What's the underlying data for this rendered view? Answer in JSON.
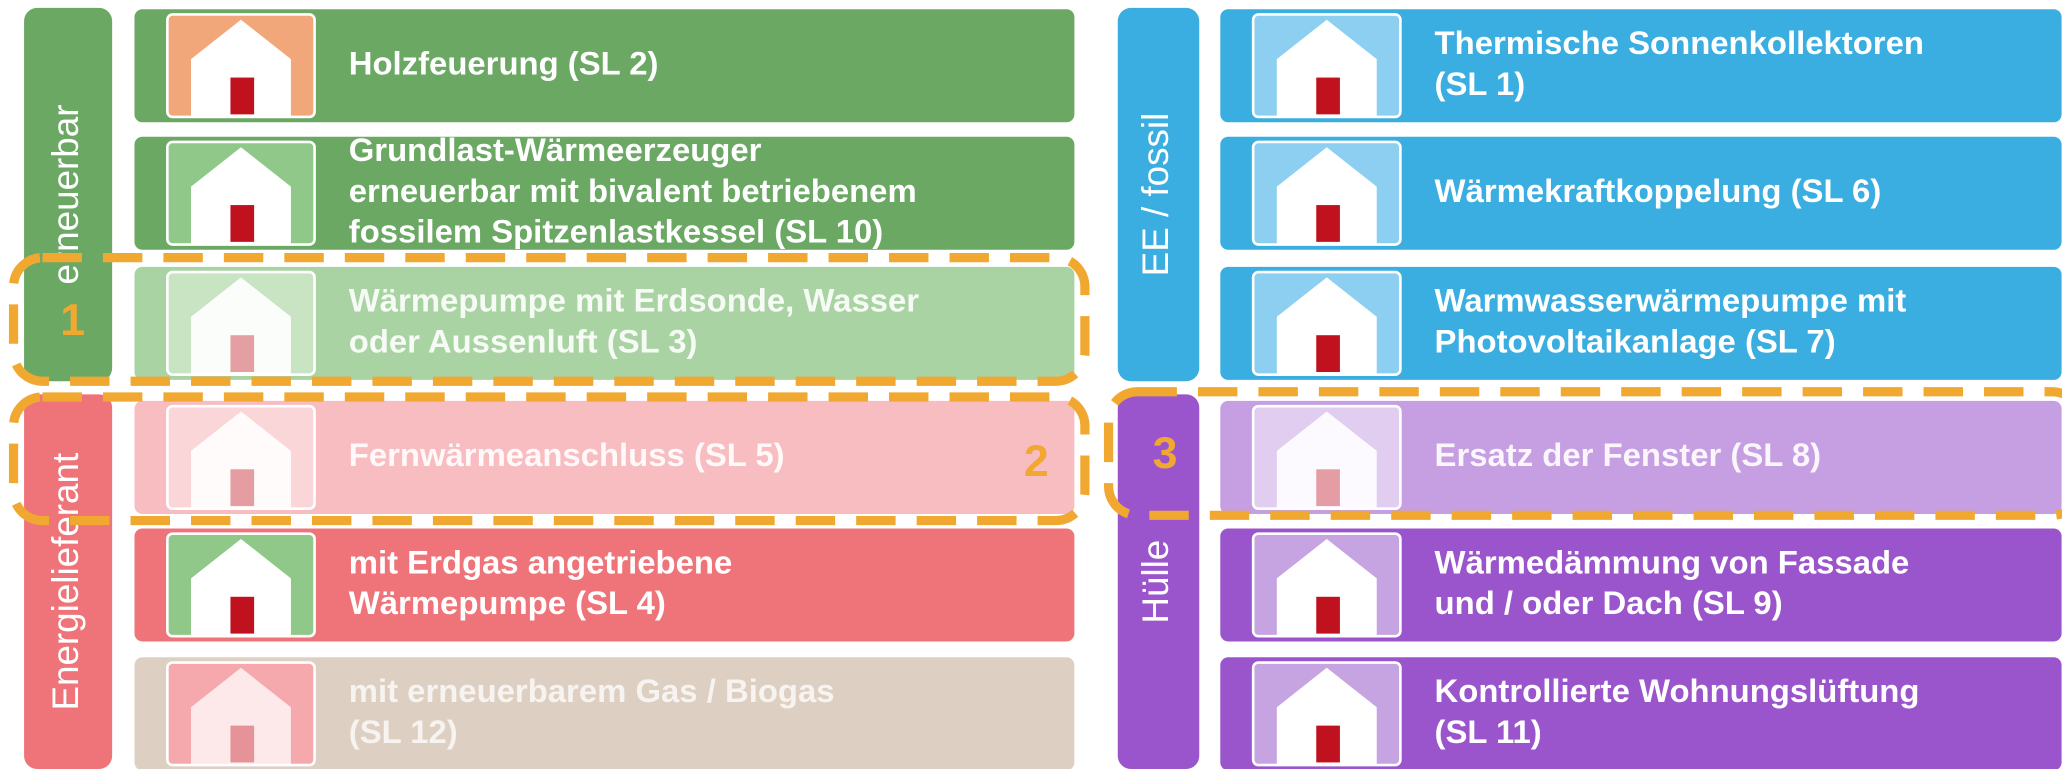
{
  "left": {
    "groups": [
      "erneuerbar",
      "Energielieferant"
    ],
    "rows": [
      [
        "Holzfeuerung (SL 2)"
      ],
      [
        "Grundlast-Wärmeerzeuger",
        "erneuerbar mit bivalent betriebenem",
        "fossilem Spitzenlastkessel (SL 10)"
      ],
      [
        "Wärmepumpe mit Erdsonde, Wasser",
        "oder Aussenluft (SL 3)"
      ],
      [
        "Fernwärmeanschluss (SL 5)"
      ],
      [
        "mit Erdgas angetriebene",
        "Wärmepumpe (SL 4)"
      ],
      [
        "mit erneuerbarem Gas / Biogas",
        "(SL 12)"
      ]
    ]
  },
  "right": {
    "groups": [
      "EE / fossil",
      "Hülle"
    ],
    "rows": [
      [
        "Thermische Sonnenkollektoren",
        "(SL 1)"
      ],
      [
        "Wärmekraftkoppelung (SL 6)"
      ],
      [
        "Warmwasserwärmepumpe mit",
        "Photovoltaikanlage (SL 7)"
      ],
      [
        "Ersatz der Fenster (SL 8)"
      ],
      [
        "Wärmedämmung von Fassade",
        "und / oder Dach (SL 9)"
      ],
      [
        "Kontrollierte Wohnungslüftung",
        "(SL 11)"
      ]
    ]
  },
  "markers": [
    "1",
    "2",
    "3"
  ]
}
